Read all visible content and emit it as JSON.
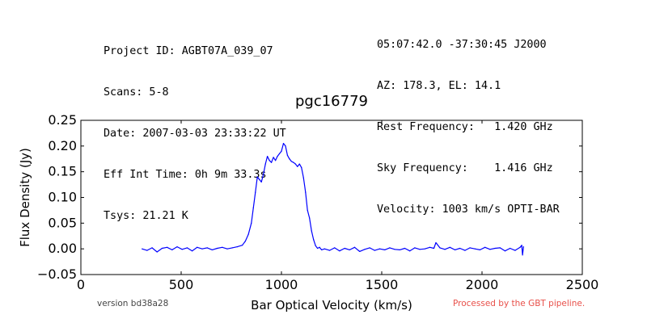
{
  "header": {
    "left_lines": [
      "Project ID: AGBT07A_039_07",
      "Scans: 5-8",
      "Date: 2007-03-03 23:33:22 UT",
      "Eff Int Time: 0h 9m 33.3s",
      "Tsys: 21.21 K"
    ],
    "right_lines": [
      "05:07:42.0 -37:30:45 J2000",
      "AZ: 178.3, EL: 14.1",
      "Rest Frequency:   1.420 GHz",
      "Sky Frequency:    1.416 GHz",
      "Velocity: 1003 km/s OPTI-BAR"
    ]
  },
  "footer": {
    "version": "version bd38a28",
    "pipeline": "Processed by the GBT pipeline.",
    "pipeline_color": "#e8504a"
  },
  "chart_data": {
    "type": "line",
    "title": "pgc16779",
    "xlabel": "Bar Optical Velocity (km/s)",
    "ylabel": "Flux Density (Jy)",
    "xlim": [
      0,
      2500
    ],
    "ylim": [
      -0.05,
      0.25
    ],
    "xticks": [
      "0",
      "500",
      "1000",
      "1500",
      "2000",
      "2500"
    ],
    "yticks": [
      "−0.05",
      "0.00",
      "0.05",
      "0.10",
      "0.15",
      "0.20",
      "0.25"
    ],
    "grid": false,
    "line_color": "#0000ff",
    "series": [
      {
        "x": [
          305,
          330,
          355,
          380,
          405,
          430,
          455,
          480,
          505,
          530,
          555,
          580,
          605,
          630,
          655,
          680,
          705,
          730,
          755,
          780,
          805,
          820,
          835,
          850,
          860,
          870,
          880,
          890,
          900,
          910,
          920,
          930,
          940,
          950,
          960,
          970,
          980,
          990,
          1000,
          1010,
          1020,
          1030,
          1040,
          1050,
          1060,
          1070,
          1080,
          1090,
          1100,
          1110,
          1120,
          1130,
          1140,
          1150,
          1160,
          1170,
          1180,
          1190,
          1200,
          1215,
          1240,
          1265,
          1290,
          1315,
          1340,
          1365,
          1390,
          1415,
          1440,
          1465,
          1490,
          1515,
          1540,
          1565,
          1590,
          1615,
          1640,
          1665,
          1690,
          1715,
          1740,
          1760,
          1770,
          1790,
          1815,
          1840,
          1865,
          1890,
          1915,
          1940,
          1965,
          1990,
          2015,
          2040,
          2065,
          2090,
          2115,
          2140,
          2165,
          2190,
          2198,
          2202,
          2207
        ],
        "y": [
          0.0,
          -0.003,
          0.002,
          -0.006,
          0.001,
          0.003,
          -0.002,
          0.004,
          -0.001,
          0.002,
          -0.004,
          0.003,
          0.0,
          0.002,
          -0.002,
          0.001,
          0.003,
          0.0,
          0.002,
          0.004,
          0.007,
          0.015,
          0.028,
          0.05,
          0.08,
          0.11,
          0.14,
          0.135,
          0.13,
          0.145,
          0.165,
          0.18,
          0.172,
          0.168,
          0.178,
          0.172,
          0.18,
          0.185,
          0.19,
          0.205,
          0.2,
          0.182,
          0.175,
          0.17,
          0.168,
          0.165,
          0.16,
          0.165,
          0.158,
          0.138,
          0.11,
          0.075,
          0.06,
          0.035,
          0.018,
          0.006,
          0.001,
          0.003,
          -0.002,
          0.0,
          -0.003,
          0.002,
          -0.004,
          0.001,
          -0.002,
          0.003,
          -0.005,
          -0.001,
          0.002,
          -0.003,
          0.0,
          -0.002,
          0.002,
          -0.001,
          -0.002,
          0.001,
          -0.004,
          0.002,
          -0.001,
          0.0,
          0.003,
          0.001,
          0.012,
          0.002,
          -0.001,
          0.003,
          -0.002,
          0.001,
          -0.003,
          0.002,
          0.0,
          -0.002,
          0.003,
          -0.001,
          0.001,
          0.002,
          -0.004,
          0.001,
          -0.003,
          0.003,
          0.007,
          -0.012,
          0.004
        ]
      }
    ]
  }
}
